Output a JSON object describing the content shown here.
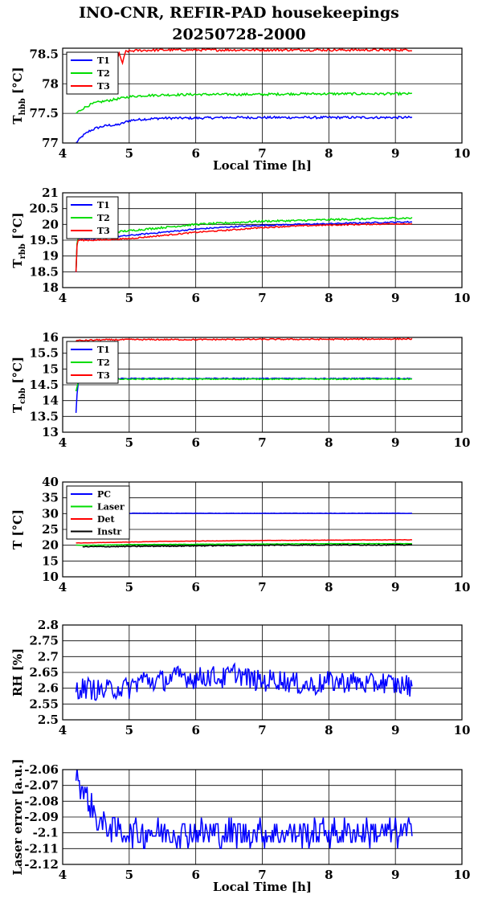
{
  "title_line1": "INO-CNR, REFIR-PAD housekeepings",
  "title_line2": "20250728-2000",
  "chart_data": [
    {
      "type": "line",
      "ylabel_main": "T",
      "ylabel_sub": "hbb",
      "ylabel_unit": "[°C]",
      "xlabel": "Local Time [h]",
      "xlim": [
        4,
        10
      ],
      "ylim": [
        77,
        78.6
      ],
      "xticks": [
        "4",
        "5",
        "6",
        "7",
        "8",
        "9",
        "10"
      ],
      "yticks": [
        {
          "v": 77,
          "label": "77"
        },
        {
          "v": 77.5,
          "label": "77.5"
        },
        {
          "v": 78,
          "label": "78"
        },
        {
          "v": 78.5,
          "label": "78.5"
        }
      ],
      "grid": true,
      "legend": "top-left",
      "series": [
        {
          "name": "T1",
          "color": "#0000ff",
          "x": [
            4.2,
            4.3,
            4.4,
            4.5,
            4.6,
            4.7,
            4.8,
            4.9,
            5.0,
            5.2,
            5.5,
            6.0,
            6.5,
            7.0,
            7.5,
            8.0,
            8.5,
            9.0,
            9.25
          ],
          "y": [
            77.0,
            77.12,
            77.2,
            77.25,
            77.28,
            77.3,
            77.3,
            77.33,
            77.38,
            77.4,
            77.42,
            77.42,
            77.43,
            77.43,
            77.43,
            77.43,
            77.43,
            77.43,
            77.43
          ]
        },
        {
          "name": "T2",
          "color": "#00dd00",
          "x": [
            4.2,
            4.3,
            4.4,
            4.5,
            4.6,
            4.7,
            4.8,
            4.9,
            5.0,
            5.2,
            5.5,
            6.0,
            6.5,
            7.0,
            7.5,
            8.0,
            8.5,
            9.0,
            9.25
          ],
          "y": [
            77.5,
            77.58,
            77.64,
            77.68,
            77.7,
            77.72,
            77.74,
            77.76,
            77.78,
            77.8,
            77.81,
            77.82,
            77.82,
            77.82,
            77.83,
            77.83,
            77.83,
            77.83,
            77.83
          ]
        },
        {
          "name": "T3",
          "color": "#ff0000",
          "x": [
            4.8,
            4.85,
            4.9,
            4.95,
            5.0,
            5.1,
            5.5,
            6.0,
            6.5,
            7.0,
            7.5,
            8.0,
            8.5,
            9.0,
            9.25
          ],
          "y": [
            78.35,
            78.5,
            78.35,
            78.55,
            78.55,
            78.56,
            78.57,
            78.57,
            78.57,
            78.57,
            78.57,
            78.57,
            78.57,
            78.57,
            78.57
          ]
        }
      ],
      "noise": [
        0.02,
        0.02,
        0.02
      ]
    },
    {
      "type": "line",
      "ylabel_main": "T",
      "ylabel_sub": "rbb",
      "ylabel_unit": "[°C]",
      "xlabel": "",
      "xlim": [
        4,
        10
      ],
      "ylim": [
        18,
        21
      ],
      "xticks": [
        "4",
        "5",
        "6",
        "7",
        "8",
        "9",
        "10"
      ],
      "yticks": [
        {
          "v": 18,
          "label": "18"
        },
        {
          "v": 18.5,
          "label": "18.5"
        },
        {
          "v": 19,
          "label": "19"
        },
        {
          "v": 19.5,
          "label": "19.5"
        },
        {
          "v": 20,
          "label": "20"
        },
        {
          "v": 20.5,
          "label": "20.5"
        },
        {
          "v": 21,
          "label": "21"
        }
      ],
      "grid": true,
      "legend": "top-left",
      "series": [
        {
          "name": "T1",
          "color": "#0000ff",
          "x": [
            4.2,
            4.22,
            4.3,
            4.5,
            5.0,
            5.5,
            6.0,
            6.5,
            7.0,
            7.5,
            8.0,
            8.5,
            9.0,
            9.25
          ],
          "y": [
            18.5,
            19.55,
            19.55,
            19.55,
            19.65,
            19.75,
            19.85,
            19.92,
            19.97,
            20.0,
            20.02,
            20.05,
            20.07,
            20.08
          ]
        },
        {
          "name": "T2",
          "color": "#00dd00",
          "x": [
            4.2,
            4.22,
            4.3,
            4.5,
            5.0,
            5.5,
            6.0,
            6.5,
            7.0,
            7.5,
            8.0,
            8.5,
            9.0,
            9.25
          ],
          "y": [
            18.5,
            19.6,
            19.65,
            19.7,
            19.8,
            19.9,
            20.0,
            20.05,
            20.1,
            20.12,
            20.15,
            20.17,
            20.2,
            20.2
          ]
        },
        {
          "name": "T3",
          "color": "#ff0000",
          "x": [
            4.2,
            4.22,
            4.3,
            4.5,
            5.0,
            5.5,
            6.0,
            6.5,
            7.0,
            7.5,
            8.0,
            8.5,
            9.0,
            9.25
          ],
          "y": [
            18.5,
            19.5,
            19.5,
            19.5,
            19.55,
            19.65,
            19.75,
            19.82,
            19.9,
            19.95,
            19.98,
            20.0,
            20.02,
            20.02
          ]
        }
      ],
      "noise": [
        0.02,
        0.03,
        0.02
      ]
    },
    {
      "type": "line",
      "ylabel_main": "T",
      "ylabel_sub": "cbb",
      "ylabel_unit": "[°C]",
      "xlabel": "",
      "xlim": [
        4,
        10
      ],
      "ylim": [
        13,
        16
      ],
      "xticks": [
        "4",
        "5",
        "6",
        "7",
        "8",
        "9",
        "10"
      ],
      "yticks": [
        {
          "v": 13,
          "label": "13"
        },
        {
          "v": 13.5,
          "label": "13.5"
        },
        {
          "v": 14,
          "label": "14"
        },
        {
          "v": 14.5,
          "label": "14.5"
        },
        {
          "v": 15,
          "label": "15"
        },
        {
          "v": 15.5,
          "label": "15.5"
        },
        {
          "v": 16,
          "label": "16"
        }
      ],
      "grid": true,
      "legend": "top-left",
      "series": [
        {
          "name": "T1",
          "color": "#0000ff",
          "x": [
            4.2,
            4.22,
            4.24,
            4.3,
            4.5,
            5.0,
            6.0,
            7.0,
            8.0,
            9.0,
            9.25
          ],
          "y": [
            13.6,
            14.3,
            14.65,
            14.7,
            14.7,
            14.7,
            14.7,
            14.7,
            14.7,
            14.7,
            14.7
          ]
        },
        {
          "name": "T2",
          "color": "#00dd00",
          "x": [
            4.2,
            4.22,
            4.24,
            4.3,
            4.5,
            5.0,
            6.0,
            7.0,
            8.0,
            9.0,
            9.25
          ],
          "y": [
            14.3,
            14.45,
            14.65,
            14.68,
            14.68,
            14.68,
            14.68,
            14.68,
            14.68,
            14.68,
            14.68
          ]
        },
        {
          "name": "T3",
          "color": "#ff0000",
          "x": [
            4.2,
            4.3,
            4.5,
            5.0,
            6.0,
            7.0,
            8.0,
            9.0,
            9.25
          ],
          "y": [
            15.9,
            15.9,
            15.92,
            15.93,
            15.93,
            15.94,
            15.94,
            15.95,
            15.95
          ]
        }
      ],
      "noise": [
        0.015,
        0.015,
        0.02
      ]
    },
    {
      "type": "line",
      "ylabel_main": "T [°C]",
      "ylabel_sub": "",
      "ylabel_unit": "",
      "xlabel": "",
      "xlim": [
        4,
        10
      ],
      "ylim": [
        10,
        40
      ],
      "xticks": [
        "4",
        "5",
        "6",
        "7",
        "8",
        "9",
        "10"
      ],
      "yticks": [
        {
          "v": 10,
          "label": "10"
        },
        {
          "v": 15,
          "label": "15"
        },
        {
          "v": 20,
          "label": "20"
        },
        {
          "v": 25,
          "label": "25"
        },
        {
          "v": 30,
          "label": "30"
        },
        {
          "v": 35,
          "label": "35"
        },
        {
          "v": 40,
          "label": "40"
        }
      ],
      "grid": true,
      "legend": "top-left",
      "series": [
        {
          "name": "PC",
          "color": "#0000ff",
          "x": [
            4.2,
            4.5,
            5.0,
            6.0,
            7.0,
            8.0,
            9.0,
            9.25
          ],
          "y": [
            30.0,
            30.0,
            30.1,
            30.1,
            30.1,
            30.1,
            30.1,
            30.1
          ]
        },
        {
          "name": "Laser",
          "color": "#00dd00",
          "x": [
            4.2,
            4.5,
            5.0,
            6.0,
            7.0,
            8.0,
            9.0,
            9.25
          ],
          "y": [
            20.0,
            20.0,
            20.2,
            20.3,
            20.4,
            20.5,
            20.5,
            20.5
          ]
        },
        {
          "name": "Det",
          "color": "#ff0000",
          "x": [
            4.2,
            4.5,
            5.0,
            5.5,
            6.0,
            7.0,
            8.0,
            9.0,
            9.25
          ],
          "y": [
            20.7,
            20.8,
            21.0,
            21.2,
            21.3,
            21.5,
            21.6,
            21.7,
            21.7
          ]
        },
        {
          "name": "Instr",
          "color": "#000000",
          "x": [
            4.3,
            5.0,
            6.0,
            7.0,
            8.0,
            9.0,
            9.25
          ],
          "y": [
            19.5,
            19.6,
            19.8,
            20.0,
            20.1,
            20.1,
            20.1
          ]
        }
      ],
      "noise": [
        0.05,
        0.05,
        0.05,
        0.15
      ]
    },
    {
      "type": "line",
      "ylabel_main": "RH [%]",
      "ylabel_sub": "",
      "ylabel_unit": "",
      "xlabel": "",
      "xlim": [
        4,
        10
      ],
      "ylim": [
        2.5,
        2.8
      ],
      "xticks": [
        "4",
        "5",
        "6",
        "7",
        "8",
        "9",
        "10"
      ],
      "yticks": [
        {
          "v": 2.5,
          "label": "2.5"
        },
        {
          "v": 2.55,
          "label": "2.55"
        },
        {
          "v": 2.6,
          "label": "2.6"
        },
        {
          "v": 2.65,
          "label": "2.65"
        },
        {
          "v": 2.7,
          "label": "2.7"
        },
        {
          "v": 2.75,
          "label": "2.75"
        },
        {
          "v": 2.8,
          "label": "2.8"
        }
      ],
      "grid": true,
      "legend": "none",
      "series": [
        {
          "name": "",
          "color": "#0000ff",
          "x": [
            4.2,
            4.4,
            4.6,
            4.8,
            5.0,
            5.2,
            5.4,
            5.6,
            5.8,
            6.0,
            6.2,
            6.4,
            6.6,
            6.8,
            7.0,
            7.2,
            7.4,
            7.6,
            7.8,
            8.0,
            8.2,
            8.4,
            8.6,
            8.8,
            9.0,
            9.2,
            9.25
          ],
          "y": [
            2.6,
            2.6,
            2.59,
            2.6,
            2.6,
            2.63,
            2.62,
            2.63,
            2.64,
            2.63,
            2.64,
            2.63,
            2.65,
            2.63,
            2.62,
            2.63,
            2.62,
            2.61,
            2.61,
            2.62,
            2.62,
            2.62,
            2.61,
            2.62,
            2.61,
            2.61,
            2.59
          ]
        }
      ],
      "noise": [
        0.035
      ]
    },
    {
      "type": "line",
      "ylabel_main": "Laser error [a.u.]",
      "ylabel_sub": "",
      "ylabel_unit": "",
      "xlabel": "Local Time [h]",
      "xlim": [
        4,
        10
      ],
      "ylim": [
        -2.12,
        -2.06
      ],
      "xticks": [
        "4",
        "5",
        "6",
        "7",
        "8",
        "9",
        "10"
      ],
      "yticks": [
        {
          "v": -2.12,
          "label": "-2.12"
        },
        {
          "v": -2.11,
          "label": "-2.11"
        },
        {
          "v": -2.1,
          "label": "-2.1"
        },
        {
          "v": -2.09,
          "label": "-2.09"
        },
        {
          "v": -2.08,
          "label": "-2.08"
        },
        {
          "v": -2.07,
          "label": "-2.07"
        },
        {
          "v": -2.06,
          "label": "-2.06"
        }
      ],
      "grid": true,
      "legend": "none",
      "series": [
        {
          "name": "",
          "color": "#0000ff",
          "x": [
            4.2,
            4.3,
            4.4,
            4.5,
            4.6,
            5.0,
            6.0,
            7.0,
            8.0,
            9.0,
            9.25
          ],
          "y": [
            -2.06,
            -2.075,
            -2.08,
            -2.09,
            -2.095,
            -2.1,
            -2.1,
            -2.1,
            -2.1,
            -2.1,
            -2.1
          ]
        }
      ],
      "noise": [
        0.009
      ],
      "quantum": 0.0039
    }
  ]
}
